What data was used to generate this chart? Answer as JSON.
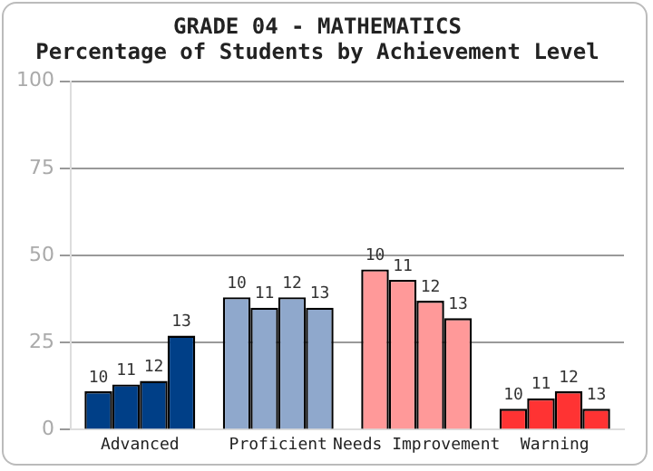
{
  "chart_data": {
    "type": "bar",
    "title": "GRADE 04 - MATHEMATICS",
    "subtitle": "Percentage of Students by Achievement Level",
    "categories": [
      "Advanced",
      "Proficient",
      "Needs Improvement",
      "Warning"
    ],
    "series": [
      {
        "name": "10",
        "colors": [
          "#003f87",
          "#8fa8cc",
          "#ff9999",
          "#ff3333"
        ],
        "values": [
          11,
          38,
          46,
          6
        ]
      },
      {
        "name": "11",
        "colors": [
          "#003f87",
          "#8fa8cc",
          "#ff9999",
          "#ff3333"
        ],
        "values": [
          13,
          35,
          43,
          9
        ]
      },
      {
        "name": "12",
        "colors": [
          "#003f87",
          "#8fa8cc",
          "#ff9999",
          "#ff3333"
        ],
        "values": [
          14,
          38,
          37,
          11
        ]
      },
      {
        "name": "13",
        "colors": [
          "#003f87",
          "#8fa8cc",
          "#ff9999",
          "#ff3333"
        ],
        "values": [
          27,
          35,
          32,
          6
        ]
      }
    ],
    "ylim": [
      0,
      100
    ],
    "yticks": [
      0,
      25,
      50,
      75,
      100
    ],
    "grid": "y",
    "legend": false
  }
}
